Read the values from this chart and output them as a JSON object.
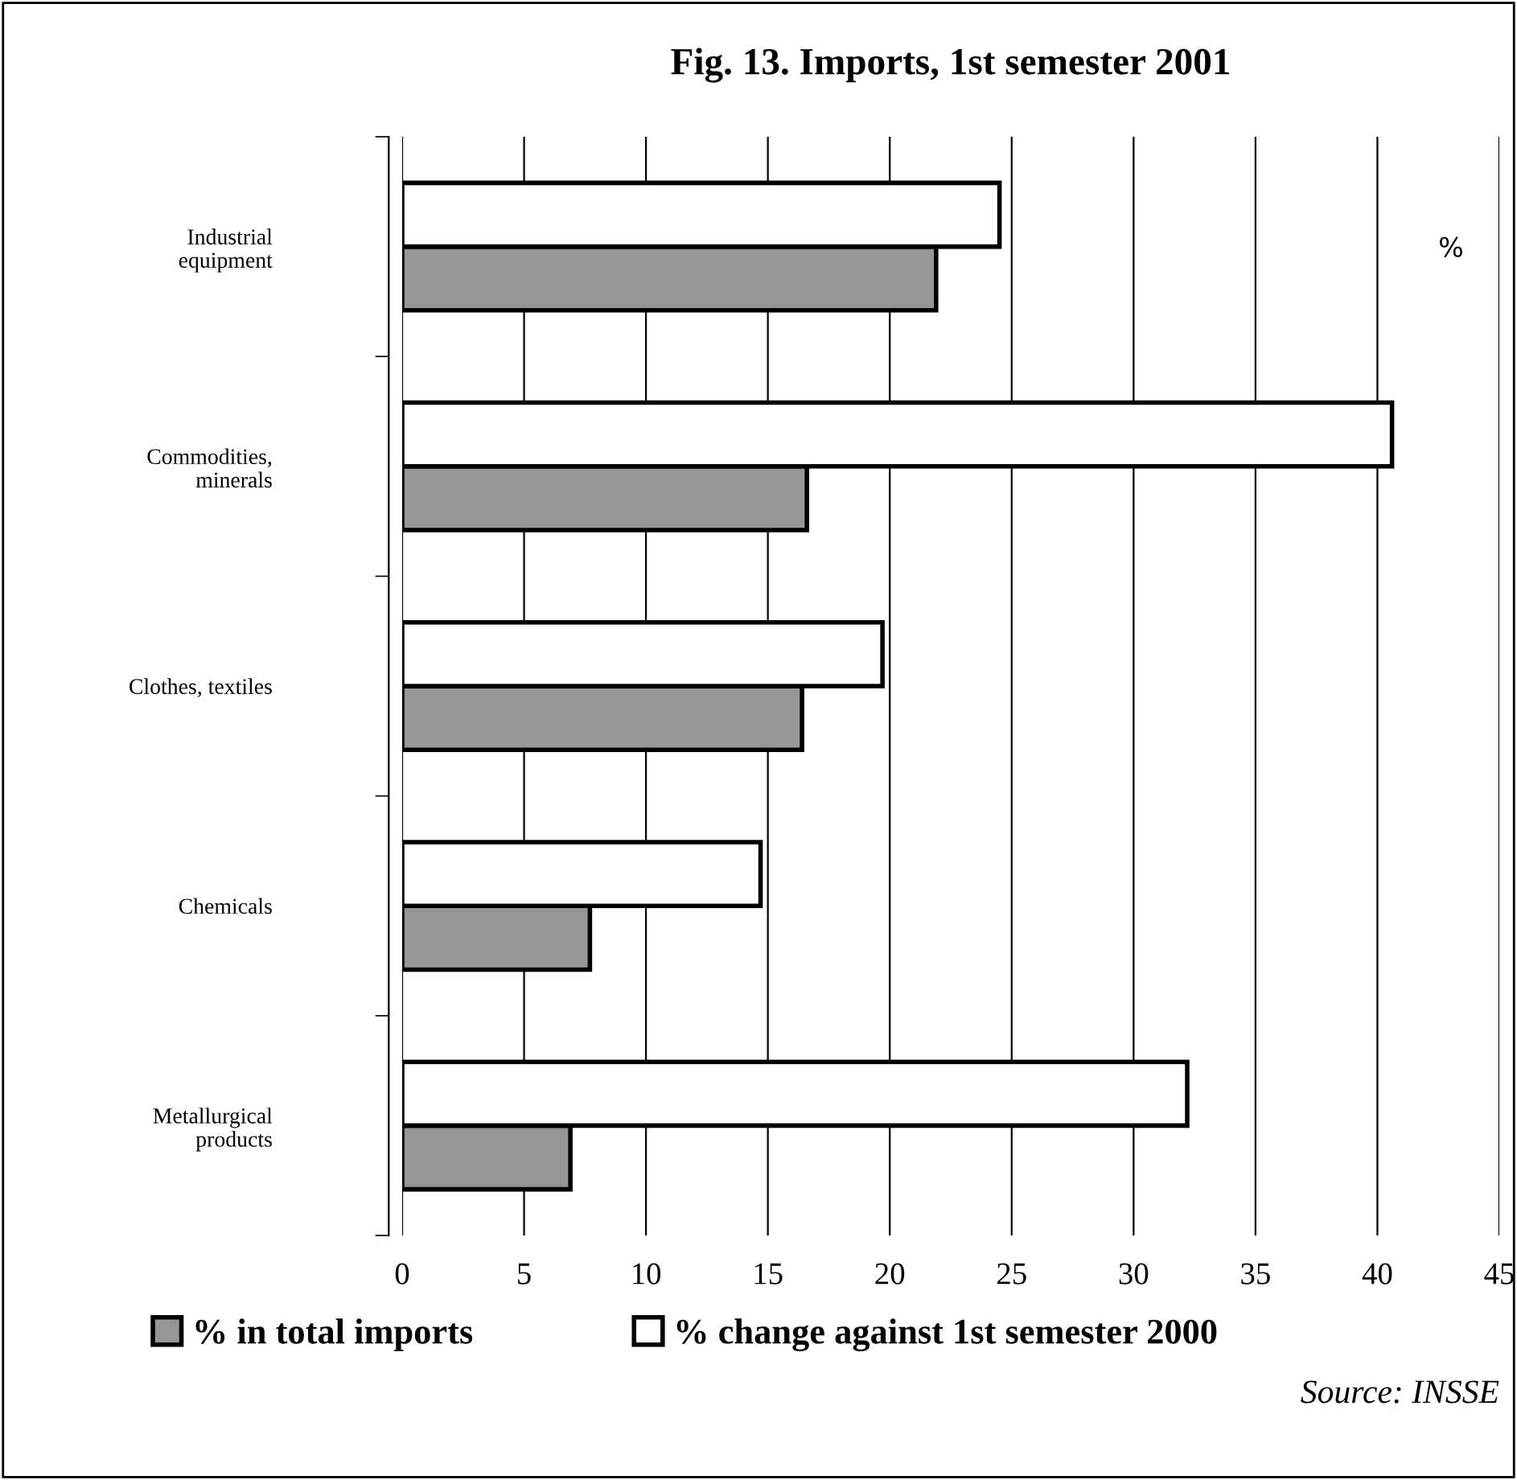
{
  "chart_data": {
    "type": "bar",
    "orientation": "horizontal",
    "title": "Fig. 13. Imports, 1st semester 2001",
    "categories": [
      "Industrial\nequipment",
      "Commodities,\nminerals",
      "Clothes, textiles",
      "Chemicals",
      "Metallurgical\nproducts"
    ],
    "series": [
      {
        "name": "% in total imports",
        "color": "#969696",
        "values": [
          21.9,
          16.6,
          16.4,
          7.7,
          6.9
        ]
      },
      {
        "name": "% change against 1st semester 2000",
        "color": "#ffffff",
        "values": [
          24.5,
          40.6,
          19.7,
          14.7,
          32.2
        ]
      }
    ],
    "xlim": [
      0,
      45
    ],
    "xticks": [
      0,
      5,
      10,
      15,
      20,
      25,
      30,
      35,
      40,
      45
    ],
    "grid": "x",
    "legend": "bottom",
    "annotations": [
      "%",
      "Source: INSSE"
    ]
  }
}
